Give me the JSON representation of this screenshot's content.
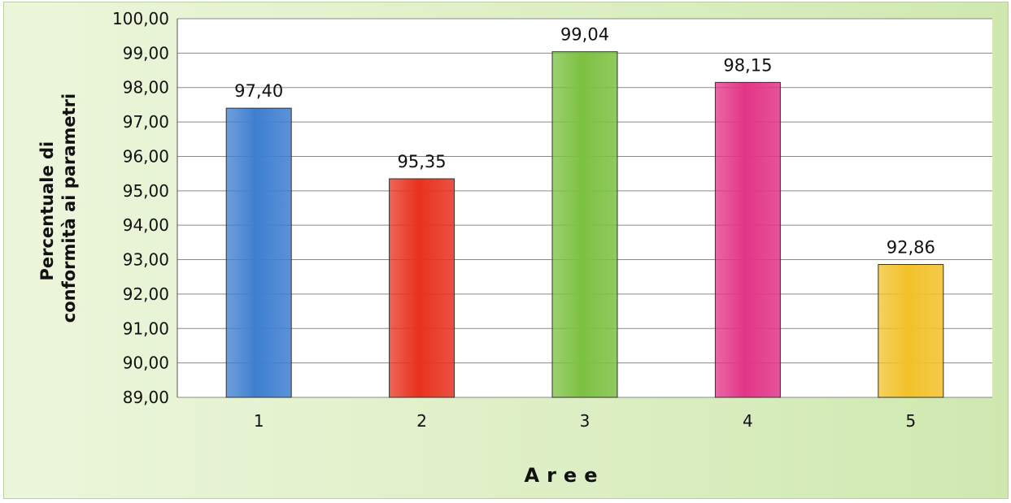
{
  "chart_data": {
    "type": "bar",
    "categories": [
      "1",
      "2",
      "3",
      "4",
      "5"
    ],
    "values": [
      97.4,
      95.35,
      99.04,
      98.15,
      92.86
    ],
    "value_labels": [
      "97,40",
      "95,35",
      "99,04",
      "98,15",
      "92,86"
    ],
    "bar_colors": [
      "#3f7fd0",
      "#e8321e",
      "#7cc142",
      "#e23587",
      "#f2c12a"
    ],
    "xlabel": "Aree",
    "ylabel_lines": [
      "Percentuale di",
      "conformità ai parametri"
    ],
    "ylim": [
      89,
      100
    ],
    "yticks": [
      "89,00",
      "90,00",
      "91,00",
      "92,00",
      "93,00",
      "94,00",
      "95,00",
      "96,00",
      "97,00",
      "98,00",
      "99,00",
      "100,00"
    ],
    "grid": true,
    "legend": "none"
  },
  "colors": {
    "background": "#dff0c8",
    "plot_background": "#ffffff",
    "gridline": "#8a8a8a"
  }
}
